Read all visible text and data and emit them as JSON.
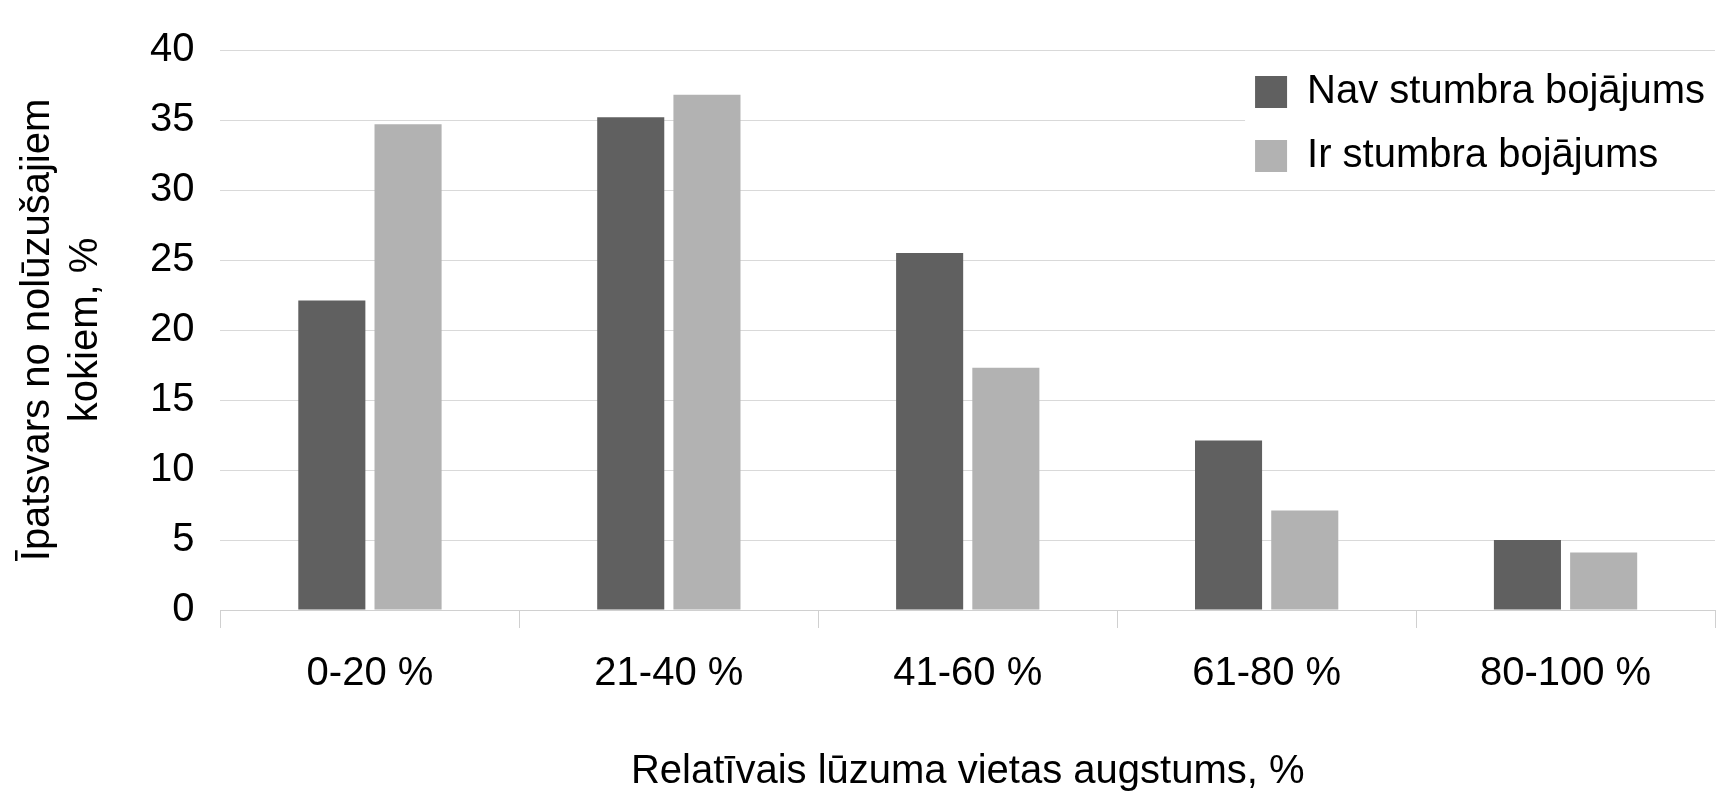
{
  "chart_data": {
    "type": "bar",
    "xlabel": "Relatīvais lūzuma vietas augstums, %",
    "ylabel": "Īpatsvars no nolūzušajiem kokiem, %",
    "categories": [
      "0-20 %",
      "21-40 %",
      "41-60 %",
      "61-80 %",
      "80-100 %"
    ],
    "series": [
      {
        "name": "Nav stumbra bojājums",
        "color": "#606060",
        "values": [
          22.1,
          35.2,
          25.5,
          12.1,
          5.0
        ]
      },
      {
        "name": "Ir stumbra bojājums",
        "color": "#b2b2b2",
        "values": [
          34.7,
          36.8,
          17.3,
          7.1,
          4.1
        ]
      }
    ],
    "ylim": [
      0,
      40
    ],
    "yticks": [
      0,
      5,
      10,
      15,
      20,
      25,
      30,
      35,
      40
    ],
    "grid": "y",
    "legend": "top right"
  }
}
